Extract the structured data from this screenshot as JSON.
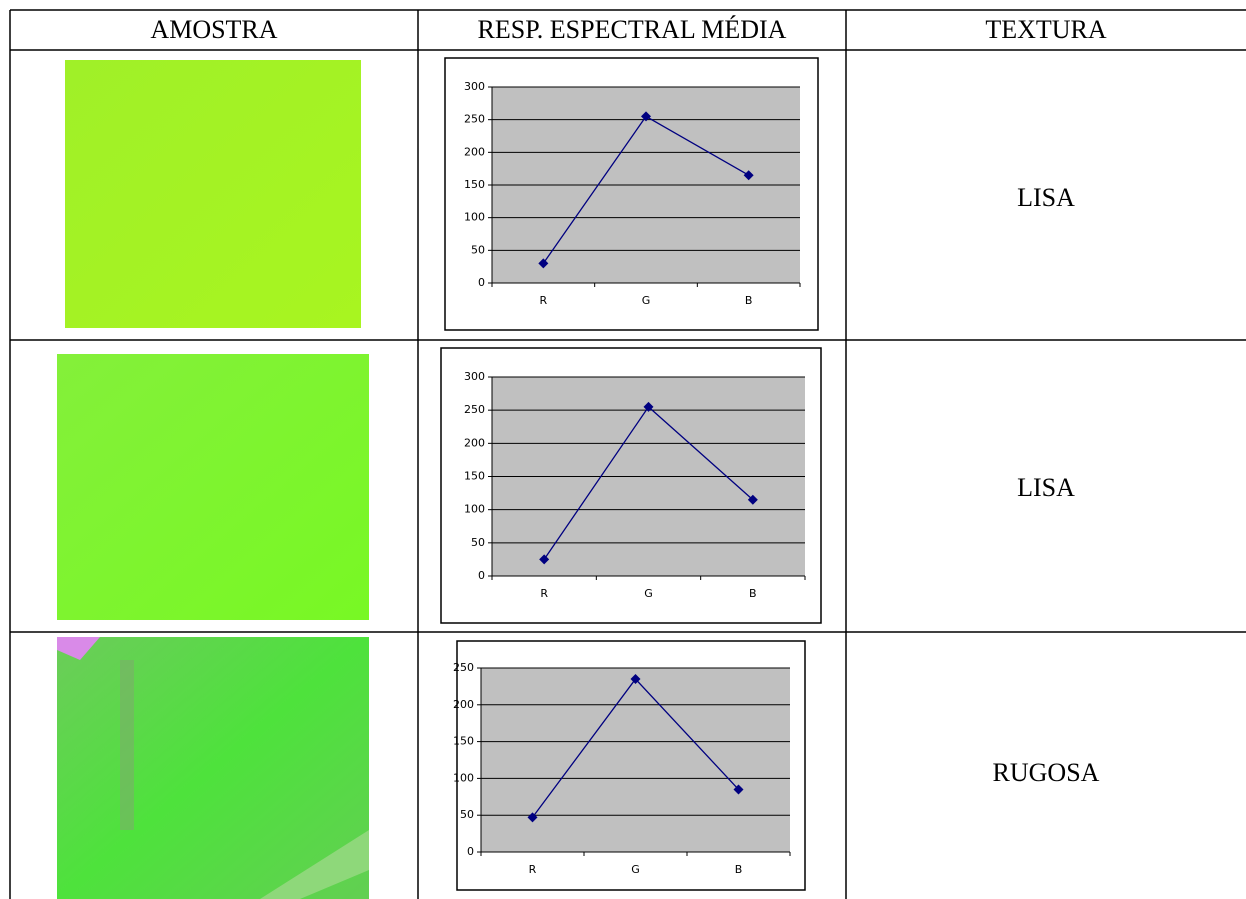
{
  "table": {
    "header": [
      "AMOSTRA",
      "RESP. ESPECTRAL MÉDIA",
      "TEXTURA"
    ],
    "rows": [
      {
        "chart": {
          "type": "line",
          "categories": [
            "R",
            "G",
            "B"
          ],
          "values": [
            30,
            255,
            165
          ],
          "ylim": [
            0,
            300
          ],
          "yticks": [
            0,
            50,
            100,
            150,
            200,
            250,
            300
          ],
          "color": "#000080",
          "grid": true
        },
        "texture": "LISA"
      },
      {
        "chart": {
          "type": "line",
          "categories": [
            "R",
            "G",
            "B"
          ],
          "values": [
            25,
            255,
            115
          ],
          "ylim": [
            0,
            300
          ],
          "yticks": [
            0,
            50,
            100,
            150,
            200,
            250,
            300
          ],
          "color": "#000080",
          "grid": true
        },
        "texture": "LISA"
      },
      {
        "chart": {
          "type": "line",
          "categories": [
            "R",
            "G",
            "B"
          ],
          "values": [
            47,
            235,
            85
          ],
          "ylim": [
            0,
            250
          ],
          "yticks": [
            0,
            50,
            100,
            150,
            200,
            250
          ],
          "color": "#000080",
          "grid": true
        },
        "texture": "RUGOSA"
      }
    ]
  }
}
